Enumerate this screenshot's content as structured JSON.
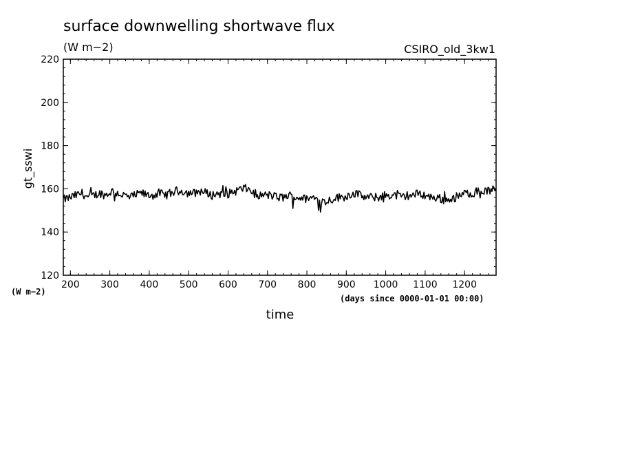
{
  "chart_data": {
    "type": "line",
    "title": "surface downwelling shortwave flux",
    "units": "(W m−2)",
    "dataset": "CSIRO_old_3kw1",
    "ylabel": "gt_sswi",
    "y_units_label": "(W m−2)",
    "xlabel": "time",
    "x_units_label": "(days since 0000-01-01 00:00)",
    "xlim": [
      182,
      1280
    ],
    "ylim": [
      120,
      220
    ],
    "x_ticks": [
      200,
      300,
      400,
      500,
      600,
      700,
      800,
      900,
      1000,
      1100,
      1200
    ],
    "y_ticks": [
      120,
      140,
      160,
      180,
      200,
      220
    ],
    "grid": false,
    "series": [
      {
        "x": [
          182,
          200,
          215,
          230,
          245,
          260,
          275,
          290,
          305,
          320,
          335,
          350,
          365,
          380,
          395,
          410,
          425,
          440,
          455,
          470,
          485,
          500,
          515,
          530,
          545,
          560,
          575,
          590,
          605,
          620,
          635,
          650,
          665,
          680,
          695,
          710,
          725,
          740,
          755,
          770,
          785,
          800,
          815,
          830,
          845,
          860,
          875,
          890,
          905,
          920,
          935,
          950,
          965,
          980,
          995,
          1010,
          1025,
          1040,
          1055,
          1070,
          1085,
          1100,
          1115,
          1130,
          1145,
          1160,
          1175,
          1190,
          1205,
          1220,
          1235,
          1250,
          1265,
          1280
        ],
        "values": [
          155,
          156,
          157,
          158,
          156,
          157,
          158,
          157,
          159,
          158,
          157,
          156,
          157,
          158,
          157,
          157,
          158,
          157,
          158,
          159,
          159,
          158,
          158,
          159,
          158,
          157,
          158,
          157,
          158,
          159,
          160,
          160,
          158,
          157,
          157,
          157,
          156,
          156,
          157,
          156,
          156,
          155,
          156,
          155,
          154,
          155,
          156,
          156,
          157,
          158,
          157,
          156,
          156,
          156,
          157,
          157,
          157,
          156,
          157,
          157,
          158,
          157,
          156,
          156,
          155,
          155,
          156,
          157,
          158,
          158,
          159,
          159,
          159,
          160
        ]
      }
    ]
  }
}
